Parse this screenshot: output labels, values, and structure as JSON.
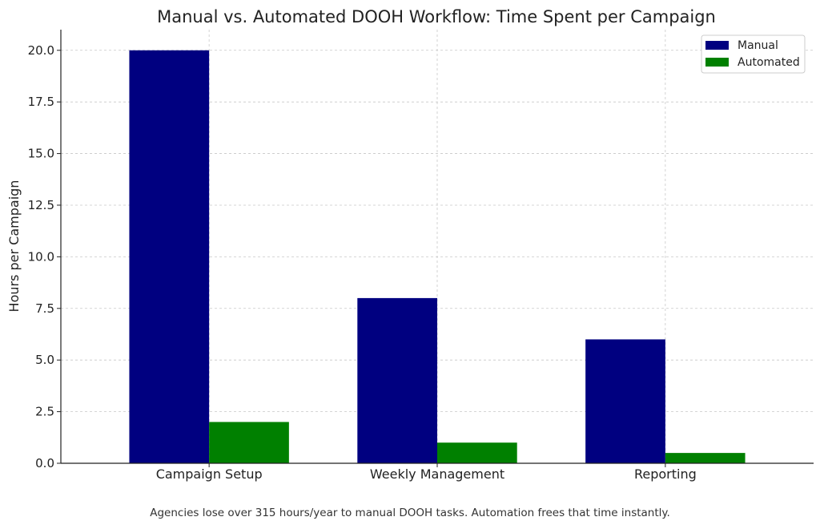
{
  "chart_data": {
    "type": "bar",
    "title": "Manual vs. Automated DOOH Workflow: Time Spent per Campaign",
    "xlabel": "",
    "ylabel": "Hours per Campaign",
    "categories": [
      "Campaign Setup",
      "Weekly Management",
      "Reporting"
    ],
    "series": [
      {
        "name": "Manual",
        "values": [
          20,
          8,
          6
        ],
        "color": "#000080"
      },
      {
        "name": "Automated",
        "values": [
          2,
          1,
          0.5
        ],
        "color": "#008000"
      }
    ],
    "ylim": [
      0,
      21
    ],
    "yticks": [
      "0.0",
      "2.5",
      "5.0",
      "7.5",
      "10.0",
      "12.5",
      "15.0",
      "17.5",
      "20.0"
    ],
    "grid": true,
    "legend_position": "top-right"
  },
  "caption": "Agencies lose over 315 hours/year to manual DOOH tasks. Automation frees that time instantly."
}
